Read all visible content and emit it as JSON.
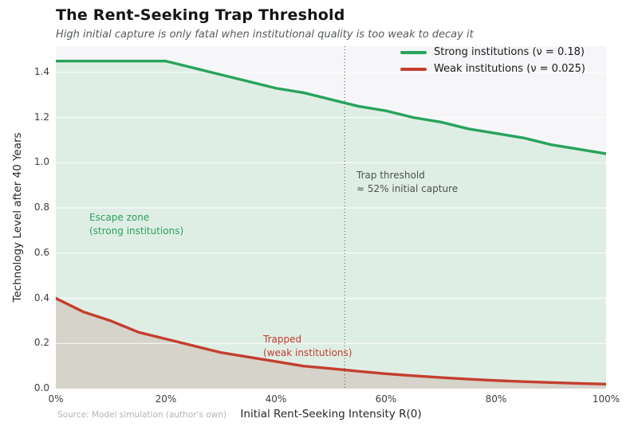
{
  "source_note": "Source: Model simulation (author's own)",
  "chart_data": {
    "type": "area",
    "title": "The Rent-Seeking Trap Threshold",
    "subtitle": "High initial capture is only fatal when institutional quality is too weak to decay it",
    "xlabel": "Initial Rent-Seeking Intensity R(0)",
    "ylabel": "Technology Level after 40 Years",
    "xlim": [
      0,
      100
    ],
    "ylim": [
      0,
      1.516
    ],
    "grid": "horizontal-white",
    "legend_position": "upper-right-inside",
    "x_tick_values": [
      0,
      20,
      40,
      60,
      80,
      100
    ],
    "x_tick_labels": [
      "0%",
      "20%",
      "40%",
      "60%",
      "80%",
      "100%"
    ],
    "y_tick_values": [
      0.0,
      0.2,
      0.4,
      0.6,
      0.8,
      1.0,
      1.2,
      1.4
    ],
    "y_tick_labels": [
      "0.0",
      "0.2",
      "0.4",
      "0.6",
      "0.8",
      "1.0",
      "1.2",
      "1.4"
    ],
    "x": [
      0,
      5,
      10,
      15,
      20,
      25,
      30,
      35,
      40,
      45,
      50,
      55,
      60,
      65,
      70,
      75,
      80,
      85,
      90,
      95,
      100
    ],
    "series": [
      {
        "name": "Strong institutions (ν = 0.18)",
        "color": "#28a35c",
        "fill": "#dfeee5",
        "values": [
          1.45,
          1.45,
          1.45,
          1.45,
          1.45,
          1.42,
          1.39,
          1.36,
          1.33,
          1.31,
          1.28,
          1.25,
          1.23,
          1.2,
          1.18,
          1.15,
          1.13,
          1.11,
          1.08,
          1.06,
          1.04
        ]
      },
      {
        "name": "Weak institutions (ν = 0.025)",
        "color": "#c43e2e",
        "fill": "#d6d3ca",
        "values": [
          0.4,
          0.34,
          0.3,
          0.25,
          0.22,
          0.19,
          0.16,
          0.14,
          0.12,
          0.1,
          0.089,
          0.077,
          0.066,
          0.057,
          0.049,
          0.042,
          0.036,
          0.031,
          0.027,
          0.023,
          0.02
        ]
      }
    ],
    "threshold": {
      "x": 52.5,
      "style": "dotted-vertical",
      "color": "#5a5a5a"
    },
    "annotations": {
      "threshold": {
        "line1": "Trap threshold",
        "line2": "≈ 52% initial capture"
      },
      "escape": {
        "line1": "Escape zone",
        "line2": "(strong institutions)"
      },
      "trapped": {
        "line1": "Trapped",
        "line2": "(weak institutions)"
      }
    }
  }
}
